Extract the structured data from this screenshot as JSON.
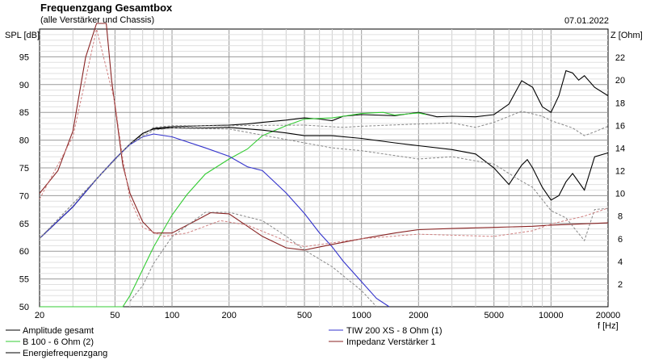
{
  "title": "Frequenzgang Gesamtbox",
  "subtitle": "(alle Verstärker und Chassis)",
  "date": "07.01.2022",
  "chart_data": {
    "type": "line",
    "xscale": "log",
    "xlim": [
      20,
      20000
    ],
    "ylim": [
      50,
      100
    ],
    "y2lim": [
      0,
      24.5
    ],
    "ylabel": "SPL [dB]",
    "y2label": "Z [Ohm]",
    "xlabel": "f [Hz]",
    "grid": true,
    "legend_position": "bottom",
    "x_ticks": [
      {
        "v": 20,
        "label": "20"
      },
      {
        "v": 50,
        "label": "50"
      },
      {
        "v": 100,
        "label": "100"
      },
      {
        "v": 200,
        "label": "200"
      },
      {
        "v": 500,
        "label": "500"
      },
      {
        "v": 1000,
        "label": "1000"
      },
      {
        "v": 2000,
        "label": "2000"
      },
      {
        "v": 5000,
        "label": "5000"
      },
      {
        "v": 10000,
        "label": "10000"
      },
      {
        "v": 20000,
        "label": "20000"
      }
    ],
    "y_ticks": [
      50,
      55,
      60,
      65,
      70,
      75,
      80,
      85,
      90,
      95
    ],
    "y2_ticks": [
      2,
      4,
      6,
      8,
      10,
      12,
      14,
      16,
      18,
      20,
      22
    ],
    "series": [
      {
        "name": "Amplitude gesamt",
        "color": "#000000",
        "axis": "left",
        "dashed": false,
        "points": [
          [
            20,
            62.3
          ],
          [
            30,
            68
          ],
          [
            40,
            73
          ],
          [
            50,
            76.6
          ],
          [
            60,
            79.3
          ],
          [
            70,
            81.2
          ],
          [
            80,
            82.1
          ],
          [
            100,
            82.4
          ],
          [
            150,
            82.6
          ],
          [
            200,
            82.7
          ],
          [
            250,
            82.9
          ],
          [
            300,
            83.2
          ],
          [
            400,
            83.6
          ],
          [
            500,
            84
          ],
          [
            600,
            83.8
          ],
          [
            700,
            83.5
          ],
          [
            800,
            84.3
          ],
          [
            1000,
            84.6
          ],
          [
            1500,
            84.4
          ],
          [
            2000,
            85
          ],
          [
            2500,
            84.2
          ],
          [
            3000,
            84.3
          ],
          [
            4000,
            84.2
          ],
          [
            5000,
            84.6
          ],
          [
            6000,
            86.5
          ],
          [
            7000,
            90.7
          ],
          [
            8000,
            89.5
          ],
          [
            9000,
            86
          ],
          [
            10000,
            85
          ],
          [
            11000,
            88
          ],
          [
            12000,
            92.5
          ],
          [
            13000,
            92.1
          ],
          [
            14000,
            90.8
          ],
          [
            15000,
            91.6
          ],
          [
            17000,
            89.5
          ],
          [
            20000,
            88
          ]
        ]
      },
      {
        "name": "B 100 - 6 Ohm (2)",
        "color": "#33cc33",
        "axis": "left",
        "dashed": false,
        "points": [
          [
            20,
            50
          ],
          [
            55,
            50
          ],
          [
            60,
            52
          ],
          [
            70,
            56.7
          ],
          [
            80,
            60.8
          ],
          [
            100,
            66.5
          ],
          [
            120,
            70.2
          ],
          [
            150,
            73.9
          ],
          [
            200,
            76.6
          ],
          [
            250,
            78.4
          ],
          [
            300,
            80.8
          ],
          [
            400,
            82.6
          ],
          [
            500,
            83.8
          ],
          [
            600,
            83.9
          ],
          [
            700,
            84
          ],
          [
            800,
            84.3
          ],
          [
            1000,
            84.8
          ],
          [
            1300,
            85
          ],
          [
            1500,
            84.5
          ],
          [
            2000,
            84.9
          ],
          [
            2200,
            84.6
          ]
        ]
      },
      {
        "name": "Energiefrequenzgang",
        "color": "#000000",
        "axis": "left",
        "dashed": false,
        "points": [
          [
            20,
            62.3
          ],
          [
            30,
            68
          ],
          [
            40,
            73
          ],
          [
            50,
            76.6
          ],
          [
            60,
            79.3
          ],
          [
            70,
            81.2
          ],
          [
            80,
            82
          ],
          [
            100,
            82.2
          ],
          [
            150,
            82.2
          ],
          [
            200,
            82.3
          ],
          [
            300,
            81.8
          ],
          [
            400,
            81.3
          ],
          [
            500,
            80.8
          ],
          [
            700,
            80.8
          ],
          [
            1000,
            80.3
          ],
          [
            1500,
            79.5
          ],
          [
            2000,
            79
          ],
          [
            3000,
            78.3
          ],
          [
            4000,
            77.5
          ],
          [
            5000,
            75
          ],
          [
            6000,
            72
          ],
          [
            7000,
            75.5
          ],
          [
            7500,
            76.5
          ],
          [
            8000,
            75
          ],
          [
            9000,
            71.5
          ],
          [
            10000,
            69.2
          ],
          [
            11000,
            70
          ],
          [
            12000,
            72.5
          ],
          [
            13000,
            74
          ],
          [
            15000,
            71
          ],
          [
            17000,
            77
          ],
          [
            20000,
            77.7
          ]
        ]
      },
      {
        "name": "TIW 200 XS - 8 Ohm (1)",
        "color": "#3333cc",
        "axis": "left",
        "dashed": false,
        "points": [
          [
            20,
            62.3
          ],
          [
            30,
            68
          ],
          [
            40,
            73
          ],
          [
            50,
            76.6
          ],
          [
            60,
            79.2
          ],
          [
            70,
            80.6
          ],
          [
            80,
            81.1
          ],
          [
            100,
            80.6
          ],
          [
            150,
            78.6
          ],
          [
            200,
            77.1
          ],
          [
            250,
            75.2
          ],
          [
            300,
            74.5
          ],
          [
            400,
            70.5
          ],
          [
            500,
            66.8
          ],
          [
            600,
            63.3
          ],
          [
            700,
            60.8
          ],
          [
            800,
            58.2
          ],
          [
            1000,
            54.5
          ],
          [
            1200,
            51.5
          ],
          [
            1400,
            50
          ]
        ]
      },
      {
        "name": "Impedanz Verstärker 1",
        "color": "#882222",
        "axis": "right",
        "dashed": false,
        "points": [
          [
            20,
            10
          ],
          [
            25,
            12
          ],
          [
            30,
            15.5
          ],
          [
            35,
            22
          ],
          [
            40,
            25
          ],
          [
            45,
            25
          ],
          [
            48,
            20
          ],
          [
            55,
            12.5
          ],
          [
            60,
            10
          ],
          [
            70,
            7.5
          ],
          [
            80,
            6.5
          ],
          [
            100,
            6.5
          ],
          [
            130,
            7.5
          ],
          [
            160,
            8.3
          ],
          [
            200,
            8.2
          ],
          [
            300,
            6.2
          ],
          [
            400,
            5.2
          ],
          [
            500,
            5
          ],
          [
            700,
            5.5
          ],
          [
            1000,
            6
          ],
          [
            1500,
            6.5
          ],
          [
            2000,
            6.8
          ],
          [
            3000,
            6.9
          ],
          [
            5000,
            7
          ],
          [
            8000,
            7.1
          ],
          [
            10000,
            7.2
          ],
          [
            20000,
            7.4
          ]
        ]
      },
      {
        "name": "",
        "color": "#888888",
        "axis": "left",
        "dashed": true,
        "points": [
          [
            20,
            62.3
          ],
          [
            40,
            73
          ],
          [
            60,
            79.3
          ],
          [
            80,
            82.3
          ],
          [
            100,
            82.6
          ],
          [
            200,
            82.6
          ],
          [
            500,
            82.7
          ],
          [
            800,
            82.3
          ],
          [
            1000,
            82.5
          ],
          [
            2000,
            82.9
          ],
          [
            3000,
            83.1
          ],
          [
            4000,
            82.3
          ],
          [
            5000,
            83.2
          ],
          [
            7000,
            85.2
          ],
          [
            9000,
            84.3
          ],
          [
            10000,
            83.5
          ],
          [
            13000,
            82.2
          ],
          [
            15000,
            80.8
          ],
          [
            17000,
            81.5
          ],
          [
            20000,
            82.5
          ]
        ]
      },
      {
        "name": "",
        "color": "#888888",
        "axis": "left",
        "dashed": true,
        "points": [
          [
            20,
            62.3
          ],
          [
            40,
            73
          ],
          [
            60,
            79.3
          ],
          [
            80,
            81.8
          ],
          [
            100,
            82.2
          ],
          [
            200,
            82
          ],
          [
            300,
            80.9
          ],
          [
            500,
            79.5
          ],
          [
            700,
            78.6
          ],
          [
            1000,
            78.1
          ],
          [
            2000,
            76.6
          ],
          [
            3000,
            77
          ],
          [
            5000,
            75.7
          ],
          [
            6000,
            74
          ],
          [
            7000,
            72.6
          ],
          [
            8000,
            71.5
          ],
          [
            10000,
            67.3
          ],
          [
            12000,
            66
          ],
          [
            15000,
            61.9
          ],
          [
            17000,
            67.5
          ],
          [
            20000,
            67.7
          ]
        ]
      },
      {
        "name": "",
        "color": "#888888",
        "axis": "left",
        "dashed": true,
        "points": [
          [
            60,
            51
          ],
          [
            70,
            53.8
          ],
          [
            80,
            57.8
          ],
          [
            100,
            62.6
          ],
          [
            150,
            67
          ],
          [
            200,
            67
          ],
          [
            300,
            65.5
          ],
          [
            400,
            62.7
          ],
          [
            500,
            60.2
          ],
          [
            700,
            57.2
          ],
          [
            1000,
            52.9
          ],
          [
            1200,
            50
          ]
        ]
      },
      {
        "name": "",
        "color": "#d08080",
        "axis": "right",
        "dashed": true,
        "points": [
          [
            20,
            9.5
          ],
          [
            30,
            15
          ],
          [
            40,
            24.5
          ],
          [
            50,
            18
          ],
          [
            55,
            13
          ],
          [
            60,
            9.5
          ],
          [
            70,
            7
          ],
          [
            90,
            6.2
          ],
          [
            120,
            6.5
          ],
          [
            180,
            7.6
          ],
          [
            250,
            7.2
          ],
          [
            400,
            5.8
          ],
          [
            500,
            5.3
          ],
          [
            1000,
            6
          ],
          [
            2000,
            6.4
          ],
          [
            5000,
            6.2
          ],
          [
            8000,
            6.7
          ],
          [
            10000,
            7.3
          ],
          [
            15000,
            8
          ],
          [
            20000,
            8.7
          ]
        ]
      }
    ]
  }
}
